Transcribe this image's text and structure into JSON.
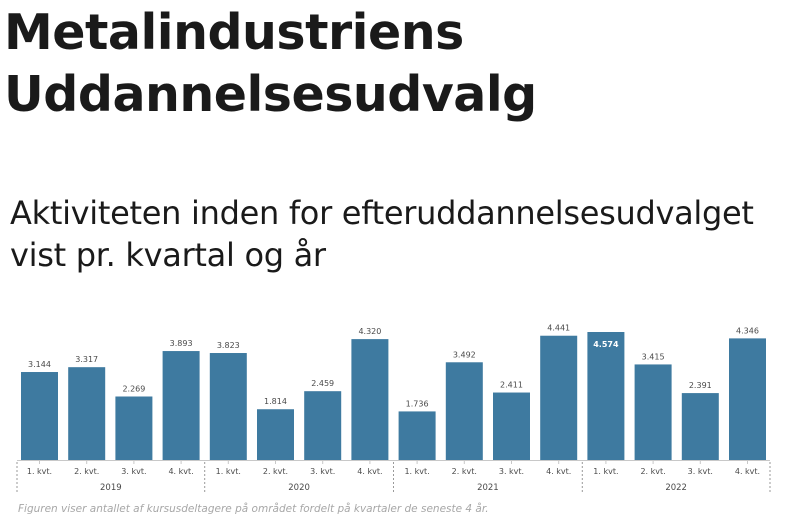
{
  "header": {
    "line1": "Metalindustriens",
    "line2": "Uddannelsesudvalg"
  },
  "chart_title": {
    "line1": "Aktiviteten inden for efteruddannelsesudvalget",
    "line2": "vist pr. kvartal og år"
  },
  "caption": "Figuren viser antallet af kursusdeltagere på området fordelt på kvartaler de seneste 4 år.",
  "chart_data": {
    "type": "bar",
    "title": "Aktiviteten inden for efteruddannelsesudvalget vist pr. kvartal og år",
    "groups": [
      "2019",
      "2020",
      "2021",
      "2022"
    ],
    "quarters": [
      "1. kvt.",
      "2. kvt.",
      "3. kvt.",
      "4. kvt."
    ],
    "categories": [
      "1. kvt.",
      "2. kvt.",
      "3. kvt.",
      "4. kvt.",
      "1. kvt.",
      "2. kvt.",
      "3. kvt.",
      "4. kvt.",
      "1. kvt.",
      "2. kvt.",
      "3. kvt.",
      "4. kvt.",
      "1. kvt.",
      "2. kvt.",
      "3. kvt.",
      "4. kvt."
    ],
    "values": [
      3144,
      3317,
      2269,
      3893,
      3823,
      1814,
      2459,
      4320,
      1736,
      3492,
      2411,
      4441,
      4574,
      3415,
      2391,
      4346
    ],
    "value_labels": [
      "3.144",
      "3.317",
      "2.269",
      "3.893",
      "3.823",
      "1.814",
      "2.459",
      "4.320",
      "1.736",
      "3.492",
      "2.411",
      "4.441",
      "4.574",
      "3.415",
      "2.391",
      "4.346"
    ],
    "highlight_index": 12,
    "xlabel": "",
    "ylabel": "",
    "ylim": [
      0,
      4574
    ],
    "grid": false,
    "legend": "none",
    "colors": {
      "bar": "#3e7aa0",
      "label": "#4a4a4a",
      "highlight_label": "#ffffff",
      "axis": "#c8c8c8",
      "separator": "#9a9a9a"
    }
  }
}
